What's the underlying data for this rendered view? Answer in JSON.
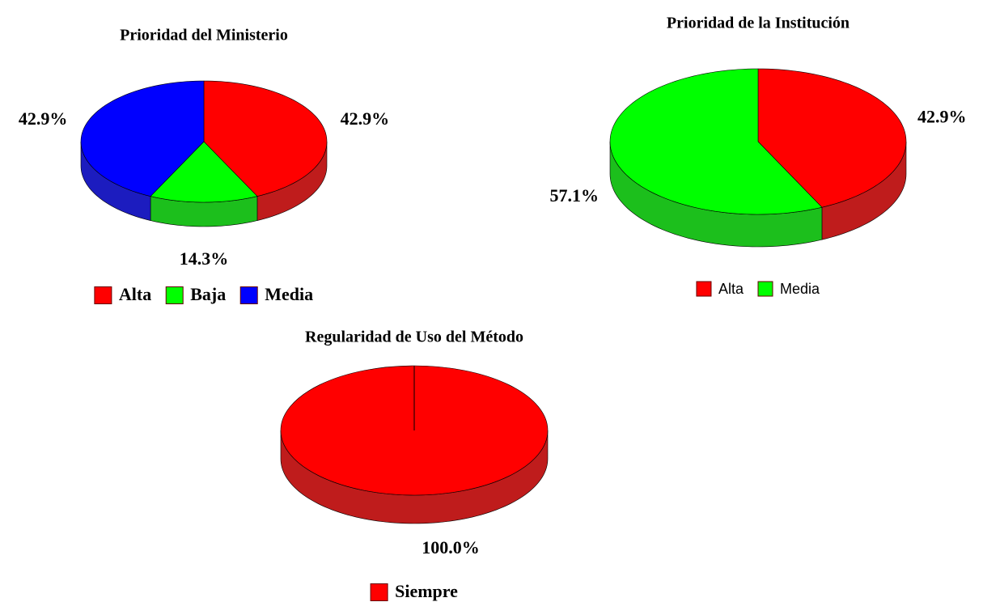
{
  "chart_data": [
    {
      "type": "pie",
      "title": "Prioridad del Ministerio",
      "categories": [
        "Alta",
        "Baja",
        "Media"
      ],
      "values": [
        42.9,
        14.3,
        42.9
      ],
      "value_labels": [
        "42.9%",
        "14.3%",
        "42.9%"
      ],
      "colors": [
        "#ff0000",
        "#00ff00",
        "#0000ff"
      ],
      "legend": "bottom"
    },
    {
      "type": "pie",
      "title": "Prioridad de la Institución",
      "categories": [
        "Alta",
        "Media"
      ],
      "values": [
        42.9,
        57.1
      ],
      "value_labels": [
        "42.9%",
        "57.1%"
      ],
      "colors": [
        "#ff0000",
        "#00ff00"
      ],
      "legend": "bottom"
    },
    {
      "type": "pie",
      "title": "Regularidad de Uso del Método",
      "categories": [
        "Siempre"
      ],
      "values": [
        100.0
      ],
      "value_labels": [
        "100.0%"
      ],
      "colors": [
        "#ff0000"
      ],
      "legend": "bottom"
    }
  ]
}
